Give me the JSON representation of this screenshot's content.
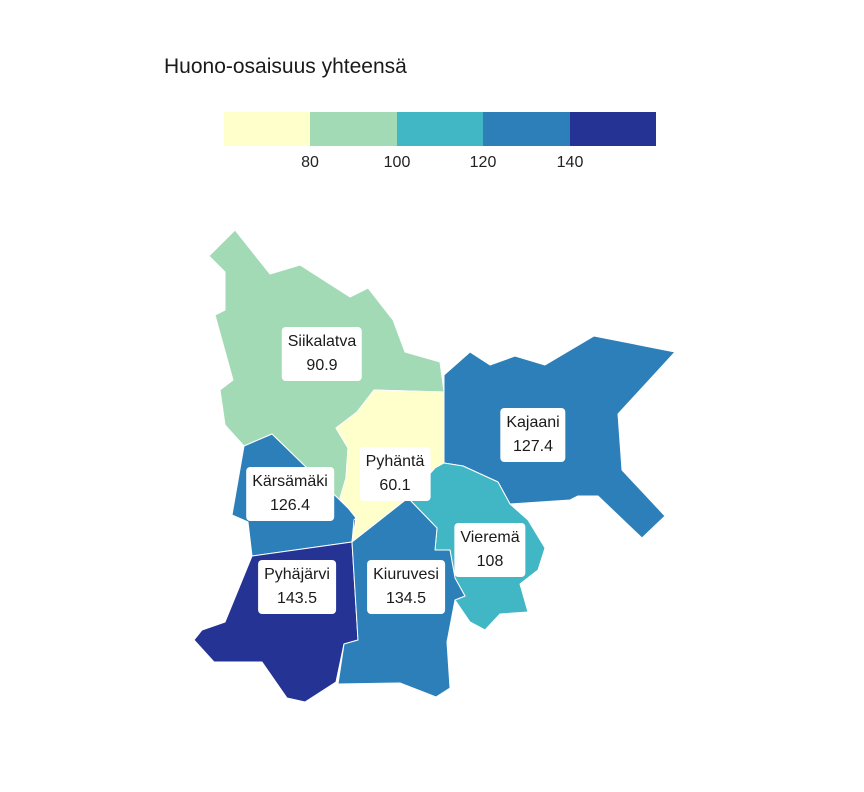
{
  "legend": {
    "title": "Huono-osaisuus yhteensä",
    "colors": [
      "#ffffcc",
      "#a1dab4",
      "#41b6c4",
      "#2c7fb8",
      "#253494"
    ],
    "ticks": [
      "80",
      "100",
      "120",
      "140"
    ]
  },
  "municipalities": [
    {
      "name": "Siikalatva",
      "value": "90.9",
      "color": "#a1dab4"
    },
    {
      "name": "Pyhäntä",
      "value": "60.1",
      "color": "#ffffcc"
    },
    {
      "name": "Kajaani",
      "value": "127.4",
      "color": "#2c7fb8"
    },
    {
      "name": "Kärsämäki",
      "value": "126.4",
      "color": "#2c7fb8"
    },
    {
      "name": "Vieremä",
      "value": "108",
      "color": "#41b6c4"
    },
    {
      "name": "Pyhäjärvi",
      "value": "143.5",
      "color": "#253494"
    },
    {
      "name": "Kiuruvesi",
      "value": "134.5",
      "color": "#2c7fb8"
    }
  ]
}
